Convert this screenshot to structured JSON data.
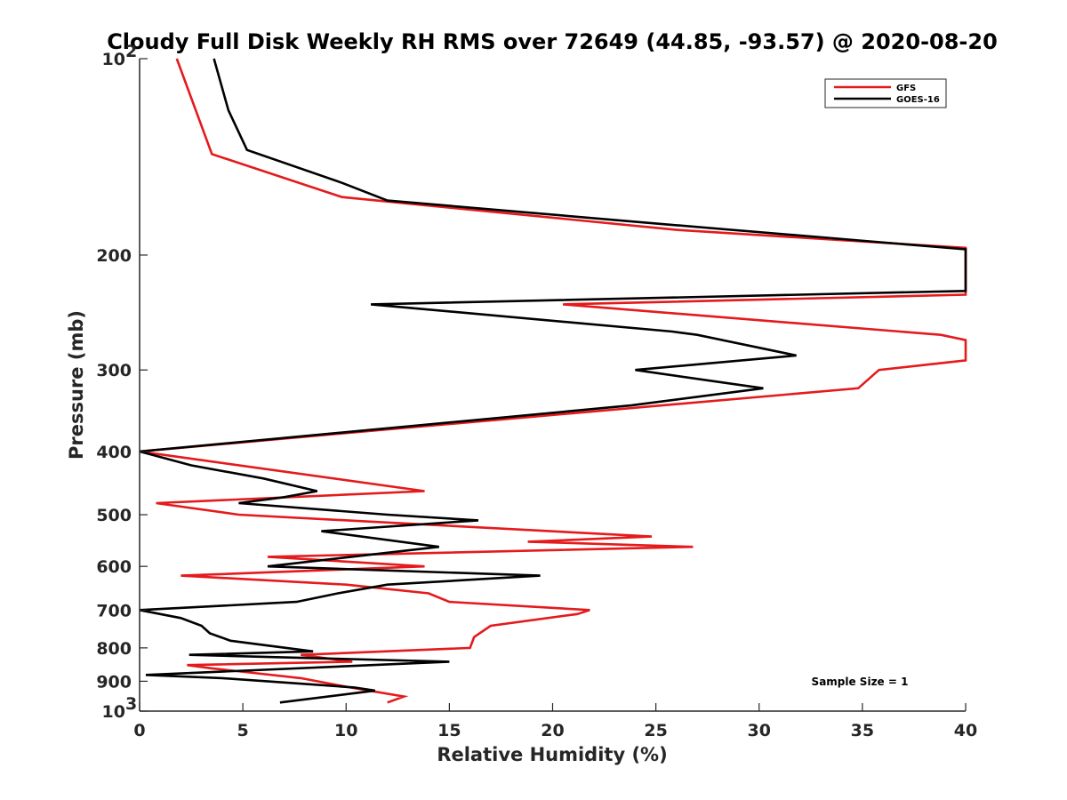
{
  "chart_data": {
    "type": "line",
    "title": "Cloudy Full Disk Weekly RH RMS over 72649 (44.85, -93.57) @ 2020-08-20",
    "xlabel": "Relative Humidity (%)",
    "ylabel": "Pressure (mb)",
    "xlim": [
      0,
      40
    ],
    "ylim": [
      100,
      1000
    ],
    "y_scale": "log",
    "y_reversed": true,
    "x_ticks": [
      "0",
      "5",
      "10",
      "15",
      "20",
      "25",
      "30",
      "35",
      "40"
    ],
    "y_ticks": [
      {
        "value": 100,
        "label": "10",
        "sup": "2"
      },
      {
        "value": 200,
        "label": "200"
      },
      {
        "value": 300,
        "label": "300"
      },
      {
        "value": 400,
        "label": "400"
      },
      {
        "value": 500,
        "label": "500"
      },
      {
        "value": 600,
        "label": "600"
      },
      {
        "value": 700,
        "label": "700"
      },
      {
        "value": 800,
        "label": "800"
      },
      {
        "value": 900,
        "label": "900"
      },
      {
        "value": 1000,
        "label": "10",
        "sup": "3"
      }
    ],
    "grid": false,
    "legend_position": "top-right",
    "annotation": "Sample Size = 1",
    "series": [
      {
        "name": "GFS",
        "color": "#e41a1c",
        "points": [
          [
            1.8,
            100
          ],
          [
            3.5,
            140
          ],
          [
            9.8,
            163
          ],
          [
            26,
            183
          ],
          [
            40,
            195
          ],
          [
            40,
            230
          ],
          [
            20.5,
            238
          ],
          [
            38.8,
            265
          ],
          [
            40,
            270
          ],
          [
            40,
            290
          ],
          [
            35.8,
            300
          ],
          [
            34.8,
            320
          ],
          [
            12,
            370
          ],
          [
            0,
            400
          ],
          [
            13.8,
            460
          ],
          [
            0.8,
            480
          ],
          [
            4.8,
            500
          ],
          [
            24.8,
            540
          ],
          [
            18.8,
            550
          ],
          [
            26.8,
            560
          ],
          [
            6.2,
            580
          ],
          [
            13.8,
            600
          ],
          [
            2.0,
            620
          ],
          [
            10.0,
            640
          ],
          [
            14.0,
            660
          ],
          [
            15.0,
            680
          ],
          [
            21.8,
            700
          ],
          [
            21.2,
            710
          ],
          [
            17.0,
            740
          ],
          [
            16.2,
            770
          ],
          [
            16.0,
            800
          ],
          [
            7.8,
            820
          ],
          [
            10.3,
            840
          ],
          [
            2.3,
            850
          ],
          [
            3.5,
            860
          ],
          [
            7.8,
            890
          ],
          [
            10.2,
            920
          ],
          [
            12.8,
            950
          ],
          [
            12.0,
            970
          ]
        ]
      },
      {
        "name": "GOES-16",
        "color": "#000000",
        "points": [
          [
            3.6,
            100
          ],
          [
            4.3,
            120
          ],
          [
            5.2,
            138
          ],
          [
            9.8,
            155
          ],
          [
            12.0,
            165
          ],
          [
            26,
            180
          ],
          [
            40,
            196
          ],
          [
            40,
            227
          ],
          [
            11.2,
            238
          ],
          [
            25.8,
            262
          ],
          [
            27.0,
            265
          ],
          [
            31.8,
            285
          ],
          [
            24.0,
            300
          ],
          [
            30.2,
            320
          ],
          [
            23.8,
            340
          ],
          [
            0,
            400
          ],
          [
            2.5,
            420
          ],
          [
            6.0,
            440
          ],
          [
            8.6,
            460
          ],
          [
            7.0,
            470
          ],
          [
            4.8,
            480
          ],
          [
            12.0,
            500
          ],
          [
            16.4,
            510
          ],
          [
            8.8,
            530
          ],
          [
            14.5,
            560
          ],
          [
            6.2,
            600
          ],
          [
            19.4,
            620
          ],
          [
            12.0,
            640
          ],
          [
            9.6,
            660
          ],
          [
            7.6,
            680
          ],
          [
            0,
            700
          ],
          [
            2.0,
            720
          ],
          [
            3.0,
            740
          ],
          [
            3.4,
            760
          ],
          [
            4.4,
            780
          ],
          [
            8.4,
            810
          ],
          [
            2.4,
            820
          ],
          [
            15.0,
            840
          ],
          [
            0.3,
            880
          ],
          [
            4.0,
            890
          ],
          [
            10.4,
            920
          ],
          [
            11.4,
            930
          ],
          [
            6.8,
            970
          ]
        ]
      }
    ]
  }
}
